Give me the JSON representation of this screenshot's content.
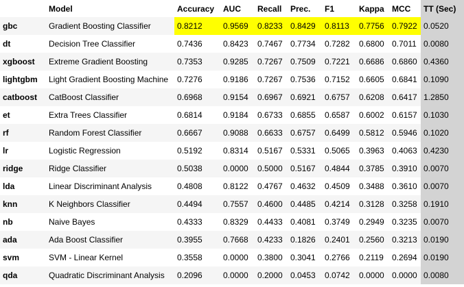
{
  "colors": {
    "highlight": "#ffff00",
    "tt_column": "#d3d3d3",
    "row_alt": "#f5f5f5"
  },
  "headers": [
    "",
    "Model",
    "Accuracy",
    "AUC",
    "Recall",
    "Prec.",
    "F1",
    "Kappa",
    "MCC",
    "TT (Sec)"
  ],
  "rows": [
    {
      "id": "gbc",
      "model": "Gradient Boosting Classifier",
      "accuracy": "0.8212",
      "auc": "0.9569",
      "recall": "0.8233",
      "prec": "0.8429",
      "f1": "0.8113",
      "kappa": "0.7756",
      "mcc": "0.7922",
      "tt": "0.0520"
    },
    {
      "id": "dt",
      "model": "Decision Tree Classifier",
      "accuracy": "0.7436",
      "auc": "0.8423",
      "recall": "0.7467",
      "prec": "0.7734",
      "f1": "0.7282",
      "kappa": "0.6800",
      "mcc": "0.7011",
      "tt": "0.0080"
    },
    {
      "id": "xgboost",
      "model": "Extreme Gradient Boosting",
      "accuracy": "0.7353",
      "auc": "0.9285",
      "recall": "0.7267",
      "prec": "0.7509",
      "f1": "0.7221",
      "kappa": "0.6686",
      "mcc": "0.6860",
      "tt": "0.4360"
    },
    {
      "id": "lightgbm",
      "model": "Light Gradient Boosting Machine",
      "accuracy": "0.7276",
      "auc": "0.9186",
      "recall": "0.7267",
      "prec": "0.7536",
      "f1": "0.7152",
      "kappa": "0.6605",
      "mcc": "0.6841",
      "tt": "0.1090"
    },
    {
      "id": "catboost",
      "model": "CatBoost Classifier",
      "accuracy": "0.6968",
      "auc": "0.9154",
      "recall": "0.6967",
      "prec": "0.6921",
      "f1": "0.6757",
      "kappa": "0.6208",
      "mcc": "0.6417",
      "tt": "1.2850"
    },
    {
      "id": "et",
      "model": "Extra Trees Classifier",
      "accuracy": "0.6814",
      "auc": "0.9184",
      "recall": "0.6733",
      "prec": "0.6855",
      "f1": "0.6587",
      "kappa": "0.6002",
      "mcc": "0.6157",
      "tt": "0.1030"
    },
    {
      "id": "rf",
      "model": "Random Forest Classifier",
      "accuracy": "0.6667",
      "auc": "0.9088",
      "recall": "0.6633",
      "prec": "0.6757",
      "f1": "0.6499",
      "kappa": "0.5812",
      "mcc": "0.5946",
      "tt": "0.1020"
    },
    {
      "id": "lr",
      "model": "Logistic Regression",
      "accuracy": "0.5192",
      "auc": "0.8314",
      "recall": "0.5167",
      "prec": "0.5331",
      "f1": "0.5065",
      "kappa": "0.3963",
      "mcc": "0.4063",
      "tt": "0.4230"
    },
    {
      "id": "ridge",
      "model": "Ridge Classifier",
      "accuracy": "0.5038",
      "auc": "0.0000",
      "recall": "0.5000",
      "prec": "0.5167",
      "f1": "0.4844",
      "kappa": "0.3785",
      "mcc": "0.3910",
      "tt": "0.0070"
    },
    {
      "id": "lda",
      "model": "Linear Discriminant Analysis",
      "accuracy": "0.4808",
      "auc": "0.8122",
      "recall": "0.4767",
      "prec": "0.4632",
      "f1": "0.4509",
      "kappa": "0.3488",
      "mcc": "0.3610",
      "tt": "0.0070"
    },
    {
      "id": "knn",
      "model": "K Neighbors Classifier",
      "accuracy": "0.4494",
      "auc": "0.7557",
      "recall": "0.4600",
      "prec": "0.4485",
      "f1": "0.4214",
      "kappa": "0.3128",
      "mcc": "0.3258",
      "tt": "0.1910"
    },
    {
      "id": "nb",
      "model": "Naive Bayes",
      "accuracy": "0.4333",
      "auc": "0.8329",
      "recall": "0.4433",
      "prec": "0.4081",
      "f1": "0.3749",
      "kappa": "0.2949",
      "mcc": "0.3235",
      "tt": "0.0070"
    },
    {
      "id": "ada",
      "model": "Ada Boost Classifier",
      "accuracy": "0.3955",
      "auc": "0.7668",
      "recall": "0.4233",
      "prec": "0.1826",
      "f1": "0.2401",
      "kappa": "0.2560",
      "mcc": "0.3213",
      "tt": "0.0190"
    },
    {
      "id": "svm",
      "model": "SVM - Linear Kernel",
      "accuracy": "0.3558",
      "auc": "0.0000",
      "recall": "0.3800",
      "prec": "0.3041",
      "f1": "0.2766",
      "kappa": "0.2119",
      "mcc": "0.2694",
      "tt": "0.0190"
    },
    {
      "id": "qda",
      "model": "Quadratic Discriminant Analysis",
      "accuracy": "0.2096",
      "auc": "0.0000",
      "recall": "0.2000",
      "prec": "0.0453",
      "f1": "0.0742",
      "kappa": "0.0000",
      "mcc": "0.0000",
      "tt": "0.0080"
    }
  ]
}
